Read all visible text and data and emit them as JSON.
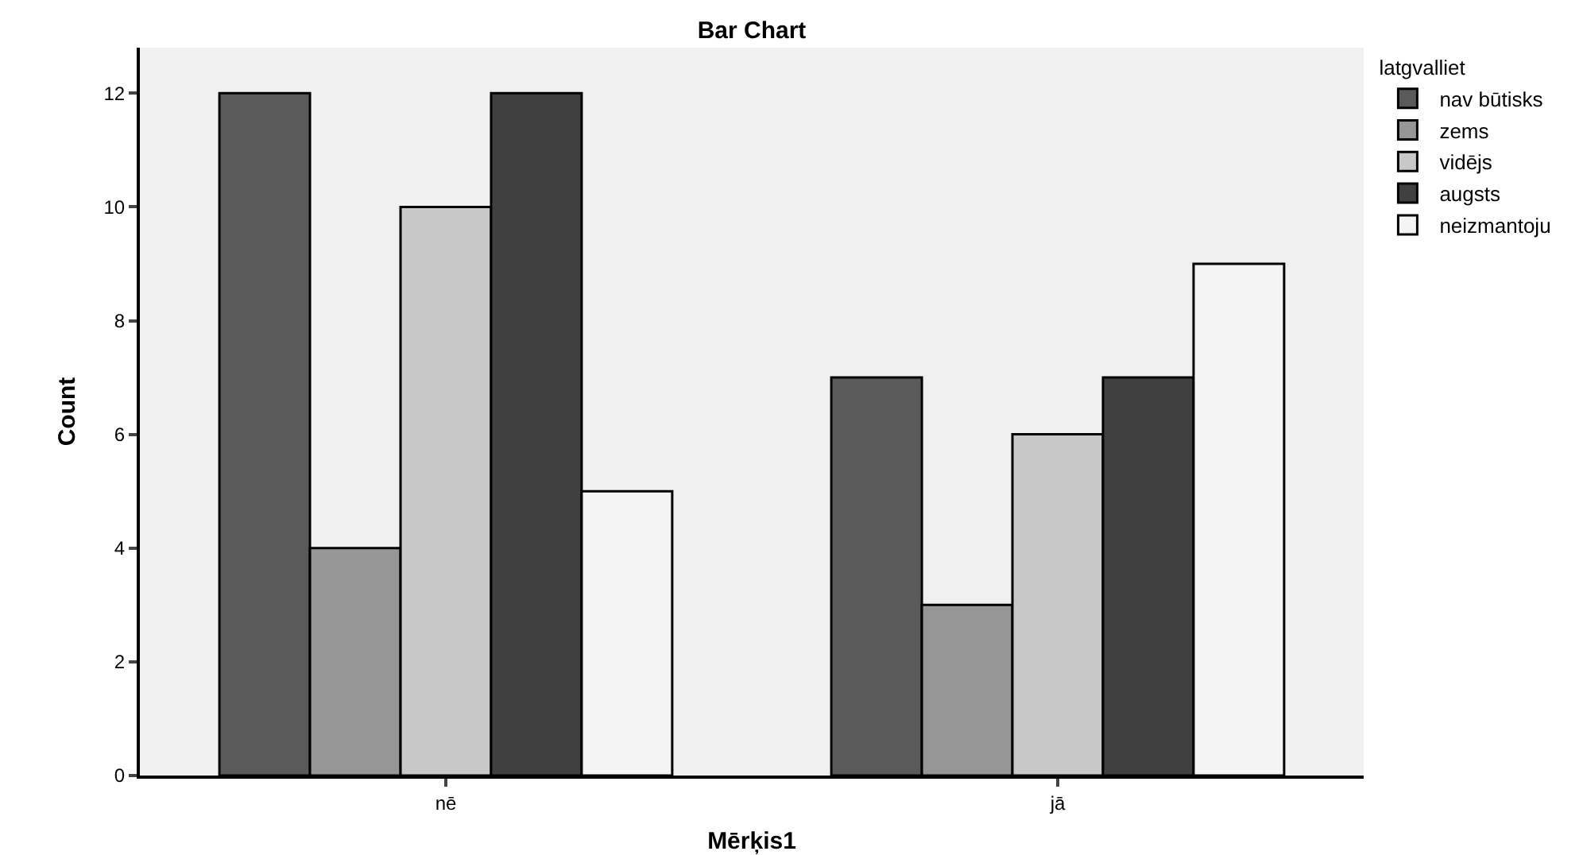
{
  "chart_data": {
    "type": "bar",
    "title": "Bar Chart",
    "xlabel": "Mērķis1",
    "ylabel": "Count",
    "legend_title": "latgvalliet",
    "categories": [
      "nē",
      "jā"
    ],
    "series": [
      {
        "name": "nav būtisks",
        "color": "#5a5a5a",
        "values": [
          12,
          7
        ]
      },
      {
        "name": "zems",
        "color": "#969696",
        "values": [
          4,
          3
        ]
      },
      {
        "name": "vidējs",
        "color": "#c8c8c8",
        "values": [
          10,
          6
        ]
      },
      {
        "name": "augsts",
        "color": "#404040",
        "values": [
          12,
          7
        ]
      },
      {
        "name": "neizmantoju",
        "color": "#f4f4f4",
        "values": [
          5,
          9
        ]
      }
    ],
    "ylim": [
      0,
      12.8
    ],
    "yticks": [
      0,
      2,
      4,
      6,
      8,
      10,
      12
    ],
    "grid": false,
    "legend": "top right"
  }
}
